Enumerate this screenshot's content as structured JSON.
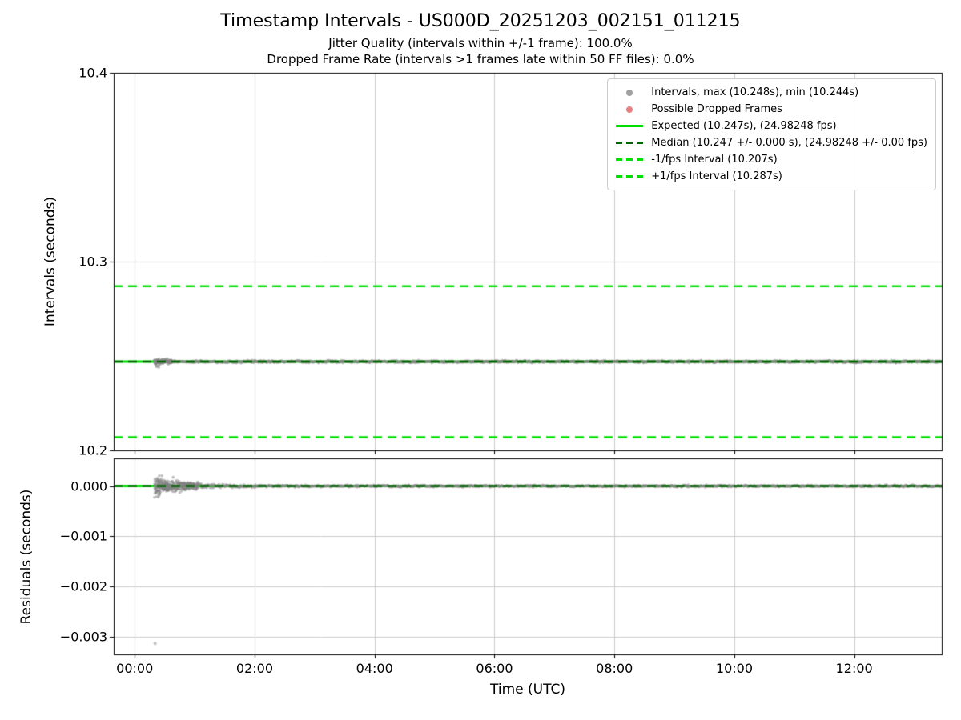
{
  "title": "Timestamp Intervals - US000D_20251203_002151_011215",
  "subtitle_line1": "Jitter Quality (intervals within +/-1 frame): 100.0%",
  "subtitle_line2": "Dropped Frame Rate (intervals >1 frames late within 50 FF files): 0.0%",
  "xlabel": "Time (UTC)",
  "colors": {
    "expected": "#00e000",
    "interval_bounds": "#00e000",
    "median": "#006400",
    "scatter": "#808080",
    "dropped": "#e05555",
    "grid": "#cccccc",
    "spine": "#000000"
  },
  "chart_data": [
    {
      "type": "scatter",
      "ylabel": "Intervals (seconds)",
      "ylim": [
        10.2,
        10.4
      ],
      "yticks": [
        {
          "v": 10.2,
          "label": "10.2"
        },
        {
          "v": 10.3,
          "label": "10.3"
        },
        {
          "v": 10.4,
          "label": "10.4"
        }
      ],
      "x_hours_lim": [
        -0.35,
        13.46
      ],
      "xticks": [
        {
          "v": 0,
          "label": "00:00"
        },
        {
          "v": 2,
          "label": "02:00"
        },
        {
          "v": 4,
          "label": "04:00"
        },
        {
          "v": 6,
          "label": "06:00"
        },
        {
          "v": 8,
          "label": "08:00"
        },
        {
          "v": 10,
          "label": "10:00"
        },
        {
          "v": 12,
          "label": "12:00"
        }
      ],
      "grid": true,
      "ref_lines": [
        {
          "name": "expected",
          "label": "Expected (10.247s), (24.98248 fps)",
          "y": 10.247,
          "style": "solid",
          "color_key": "expected",
          "width": 3
        },
        {
          "name": "minus-1fps",
          "label": "-1/fps Interval (10.207s)",
          "y": 10.207,
          "style": "dashed",
          "color_key": "interval_bounds",
          "width": 2.5
        },
        {
          "name": "plus-1fps",
          "label": "+1/fps Interval (10.287s)",
          "y": 10.287,
          "style": "dashed",
          "color_key": "interval_bounds",
          "width": 2.5
        },
        {
          "name": "median",
          "label": "Median (10.247 +/- 0.000 s), (24.98248 +/- 0.00 fps)",
          "y": 10.247,
          "style": "dashed",
          "color_key": "median",
          "width": 2.5,
          "above": true
        }
      ],
      "series": [
        {
          "name": "intervals",
          "color_key": "scatter",
          "center": 10.247,
          "max": 10.248,
          "min": 10.244,
          "x_start": 0.33,
          "x_end": 13.46,
          "sigma": 0.0008,
          "cluster": {
            "x_end": 0.62,
            "sigma": 0.0016
          },
          "outliers": [
            {
              "x": 0.36,
              "y": 10.2445
            },
            {
              "x": 0.375,
              "y": 10.2448
            },
            {
              "x": 0.4,
              "y": 10.2442
            },
            {
              "x": 0.5,
              "y": 10.2482
            }
          ]
        }
      ]
    },
    {
      "type": "scatter",
      "ylabel": "Residuals (seconds)",
      "ylim": [
        -0.00335,
        0.00055
      ],
      "yticks": [
        {
          "v": 0,
          "label": "0.000"
        },
        {
          "v": -0.001,
          "label": "−0.001"
        },
        {
          "v": -0.002,
          "label": "−0.002"
        },
        {
          "v": -0.003,
          "label": "−0.003"
        }
      ],
      "grid": true,
      "ref_lines": [
        {
          "name": "expected-residual",
          "y": 0,
          "style": "solid",
          "color_key": "expected",
          "width": 3
        },
        {
          "name": "median-residual",
          "y": 0,
          "style": "dashed",
          "color_key": "median",
          "width": 2.5,
          "above": true
        }
      ],
      "series": [
        {
          "name": "residuals",
          "color_key": "scatter",
          "center": 0,
          "x_start": 0.33,
          "x_end": 13.46,
          "sigma": 2.5e-05,
          "early": {
            "x_end": 2.2,
            "sigma0": 0.00025,
            "decay": 0.5
          },
          "outliers": [
            {
              "x": 0.34,
              "y": -0.00313
            }
          ]
        }
      ]
    }
  ],
  "legend": {
    "items": [
      {
        "label": "Intervals, max (10.248s), min (10.244s)",
        "marker": "dot",
        "color_key": "scatter"
      },
      {
        "label": "Possible Dropped Frames",
        "marker": "dot",
        "color_key": "dropped"
      },
      {
        "label": "Expected (10.247s), (24.98248 fps)",
        "marker": "solid-line",
        "color_key": "expected"
      },
      {
        "label": "Median (10.247 +/- 0.000 s), (24.98248 +/- 0.00 fps)",
        "marker": "dashed-line",
        "color_key": "median"
      },
      {
        "label": "-1/fps Interval (10.207s)",
        "marker": "dashed-line",
        "color_key": "interval_bounds"
      },
      {
        "label": "+1/fps Interval (10.287s)",
        "marker": "dashed-line",
        "color_key": "interval_bounds"
      }
    ]
  }
}
